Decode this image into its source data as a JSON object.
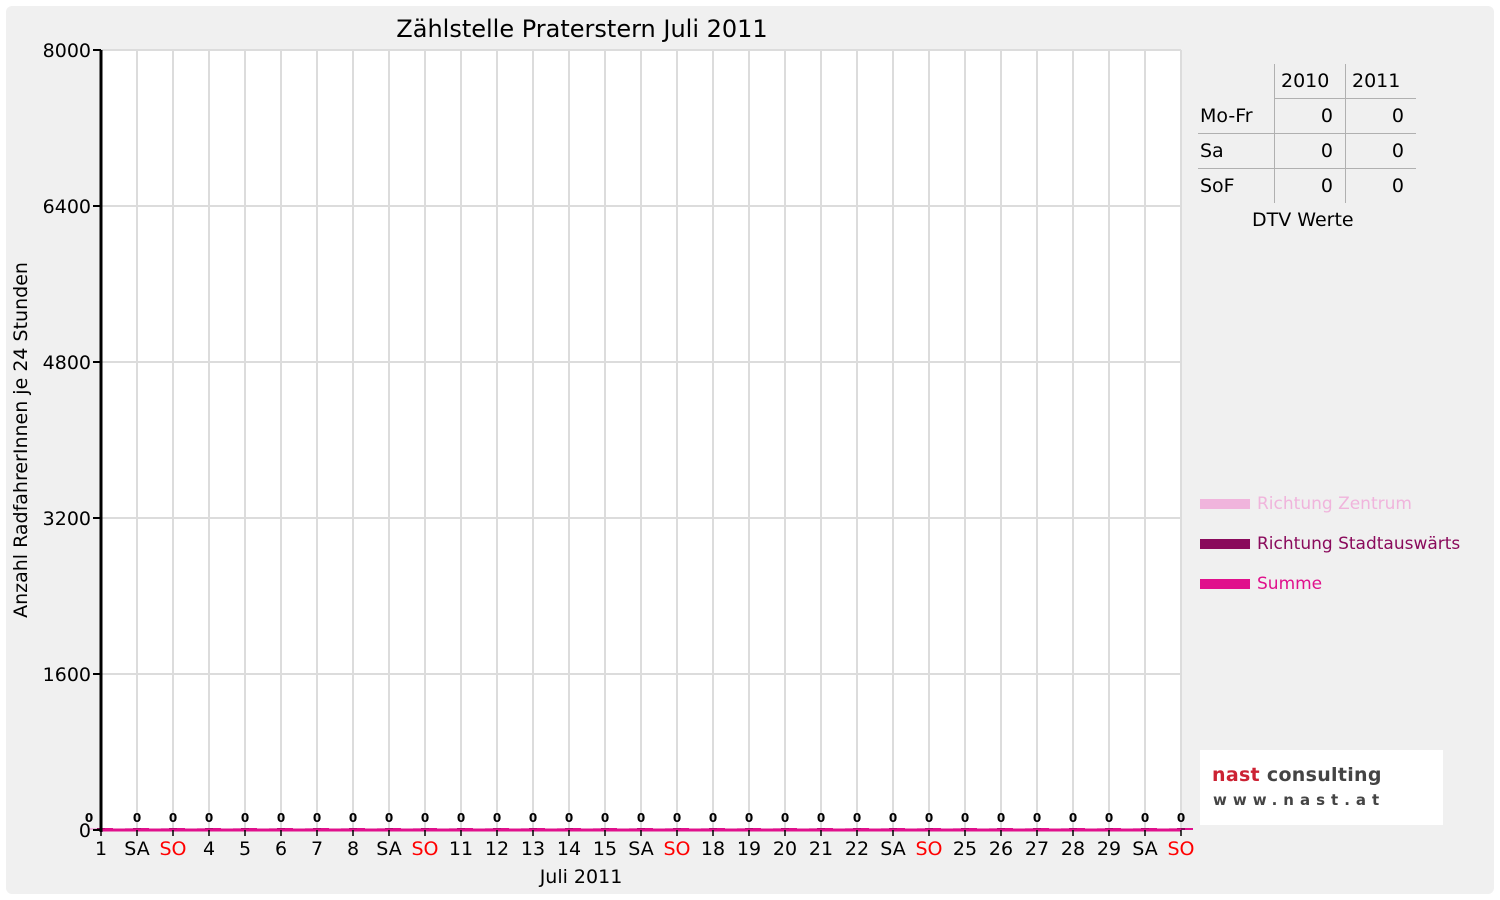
{
  "colors": {
    "zentrum": "#f0b4dc",
    "stadtauswaerts": "#8a0a5c",
    "summe": "#e0108c",
    "weekend_label": "#ff0000"
  },
  "chart_data": {
    "type": "bar",
    "title": "Zählstelle Praterstern Juli 2011",
    "xlabel": "Juli 2011",
    "ylabel": "Anzahl RadfahrerInnen je 24 Stunden",
    "ylim": [
      0,
      8000
    ],
    "yticks": [
      "0",
      "1600",
      "3200",
      "4800",
      "6400",
      "8000"
    ],
    "grid": true,
    "legend_position": "right",
    "categories": [
      "1",
      "SA",
      "SO",
      "4",
      "5",
      "6",
      "7",
      "8",
      "SA",
      "SO",
      "11",
      "12",
      "13",
      "14",
      "15",
      "SA",
      "SO",
      "18",
      "19",
      "20",
      "21",
      "22",
      "SA",
      "SO",
      "25",
      "26",
      "27",
      "28",
      "29",
      "SA",
      "SO"
    ],
    "weekend_sunday": [
      false,
      false,
      true,
      false,
      false,
      false,
      false,
      false,
      false,
      true,
      false,
      false,
      false,
      false,
      false,
      false,
      true,
      false,
      false,
      false,
      false,
      false,
      false,
      true,
      false,
      false,
      false,
      false,
      false,
      false,
      true
    ],
    "series": [
      {
        "name": "Richtung Zentrum",
        "values": [
          0,
          0,
          0,
          0,
          0,
          0,
          0,
          0,
          0,
          0,
          0,
          0,
          0,
          0,
          0,
          0,
          0,
          0,
          0,
          0,
          0,
          0,
          0,
          0,
          0,
          0,
          0,
          0,
          0,
          0,
          0
        ]
      },
      {
        "name": "Richtung Stadtauswärts",
        "values": [
          0,
          0,
          0,
          0,
          0,
          0,
          0,
          0,
          0,
          0,
          0,
          0,
          0,
          0,
          0,
          0,
          0,
          0,
          0,
          0,
          0,
          0,
          0,
          0,
          0,
          0,
          0,
          0,
          0,
          0,
          0
        ]
      },
      {
        "name": "Summe",
        "values": [
          0,
          0,
          0,
          0,
          0,
          0,
          0,
          0,
          0,
          0,
          0,
          0,
          0,
          0,
          0,
          0,
          0,
          0,
          0,
          0,
          0,
          0,
          0,
          0,
          0,
          0,
          0,
          0,
          0,
          0,
          0
        ]
      }
    ],
    "data_labels": [
      "0",
      "0",
      "0",
      "0",
      "0",
      "0",
      "0",
      "0",
      "0",
      "0",
      "0",
      "0",
      "0",
      "0",
      "0",
      "0",
      "0",
      "0",
      "0",
      "0",
      "0",
      "0",
      "0",
      "0",
      "0",
      "0",
      "0",
      "0",
      "0",
      "0",
      "0"
    ]
  },
  "dtv_table": {
    "columns": [
      "2010",
      "2011"
    ],
    "rows": [
      {
        "label": "Mo-Fr",
        "v2010": "0",
        "v2011": "0"
      },
      {
        "label": "Sa",
        "v2010": "0",
        "v2011": "0"
      },
      {
        "label": "SoF",
        "v2010": "0",
        "v2011": "0"
      }
    ],
    "caption": "DTV Werte"
  },
  "logo": {
    "accent_word": "nast",
    "word": "consulting",
    "url": "www.nast.at"
  }
}
